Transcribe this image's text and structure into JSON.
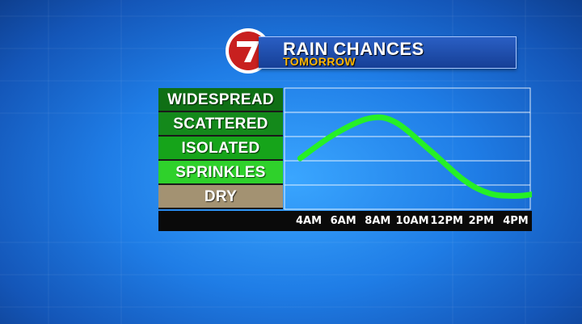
{
  "banner": {
    "title": "RAIN CHANCES",
    "subtitle": "TOMORROW",
    "logo_text": "7"
  },
  "chart_data": {
    "type": "line",
    "categories": [
      "DRY",
      "SPRINKLES",
      "ISOLATED",
      "SCATTERED",
      "WIDESPREAD"
    ],
    "category_colors": [
      "#a39272",
      "#2fd12b",
      "#16a41a",
      "#14891b",
      "#0f6f15"
    ],
    "x": [
      "4AM",
      "6AM",
      "8AM",
      "10AM",
      "12PM",
      "2PM",
      "4PM"
    ],
    "series": [
      {
        "color": "#26f026",
        "points": [
          {
            "x": 3.5,
            "y": 2.1
          },
          {
            "x": 5.5,
            "y": 3.1
          },
          {
            "x": 7.5,
            "y": 3.75
          },
          {
            "x": 9.0,
            "y": 3.6
          },
          {
            "x": 11.0,
            "y": 2.45
          },
          {
            "x": 13.0,
            "y": 1.2
          },
          {
            "x": 14.5,
            "y": 0.65
          },
          {
            "x": 16.0,
            "y": 0.55
          },
          {
            "x": 17.0,
            "y": 0.62
          }
        ]
      }
    ],
    "xlim": [
      3,
      17
    ],
    "ylim": [
      0,
      5
    ],
    "grid": true
  }
}
